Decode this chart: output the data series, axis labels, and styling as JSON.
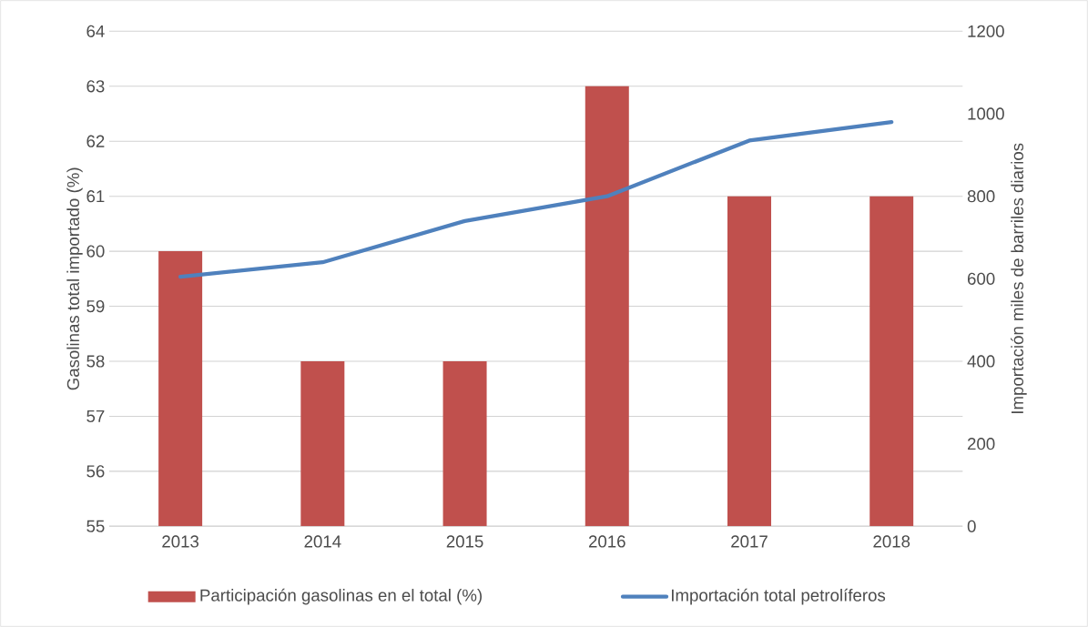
{
  "chart_data": {
    "type": "bar",
    "categories": [
      "2013",
      "2014",
      "2015",
      "2016",
      "2017",
      "2018"
    ],
    "ylabel": "Gasolinas total importado (%)",
    "y2label": "Importación miles de barriles diarios",
    "series": [
      {
        "name": "Participación gasolinas en el total (%)",
        "color": "#c0504d",
        "values": [
          60,
          58,
          58,
          63,
          61,
          61
        ]
      },
      {
        "name": "Importación  total petrolíferos",
        "type": "line",
        "axis": "y2",
        "color": "#4f81bd",
        "values": [
          605,
          640,
          740,
          800,
          935,
          980
        ]
      }
    ],
    "ylim": [
      55,
      64
    ],
    "yticks": [
      55,
      56,
      57,
      58,
      59,
      60,
      61,
      62,
      63,
      64
    ],
    "y2lim": [
      0,
      1200
    ],
    "y2ticks": [
      0,
      200,
      400,
      600,
      800,
      1000,
      1200
    ],
    "grid": "y",
    "legend": "bottom",
    "marker": "none"
  }
}
